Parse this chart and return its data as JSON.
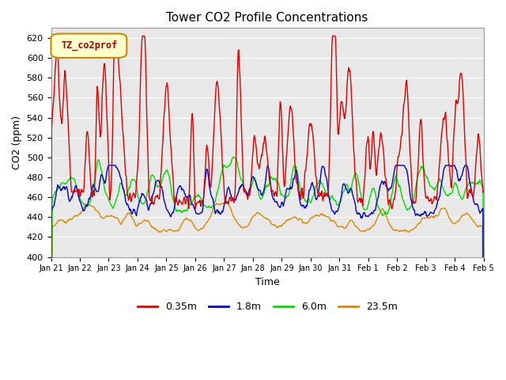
{
  "title": "Tower CO2 Profile Concentrations",
  "xlabel": "Time",
  "ylabel": "CO2 (ppm)",
  "ylim": [
    400,
    630
  ],
  "yticks": [
    400,
    420,
    440,
    460,
    480,
    500,
    520,
    540,
    560,
    580,
    600,
    620
  ],
  "series": {
    "0.35m": {
      "color": "#dd0000",
      "linewidth": 1.0
    },
    "1.8m": {
      "color": "#0000cc",
      "linewidth": 1.0
    },
    "6.0m": {
      "color": "#00dd00",
      "linewidth": 1.0
    },
    "23.5m": {
      "color": "#dd8800",
      "linewidth": 1.0
    }
  },
  "legend_label": "TZ_co2prof",
  "legend_facecolor": "#ffffcc",
  "legend_edgecolor": "#cc8800",
  "plot_bg_color": "#e8e8e8",
  "n_days": 15,
  "start_day": 21,
  "start_month": "Jan"
}
